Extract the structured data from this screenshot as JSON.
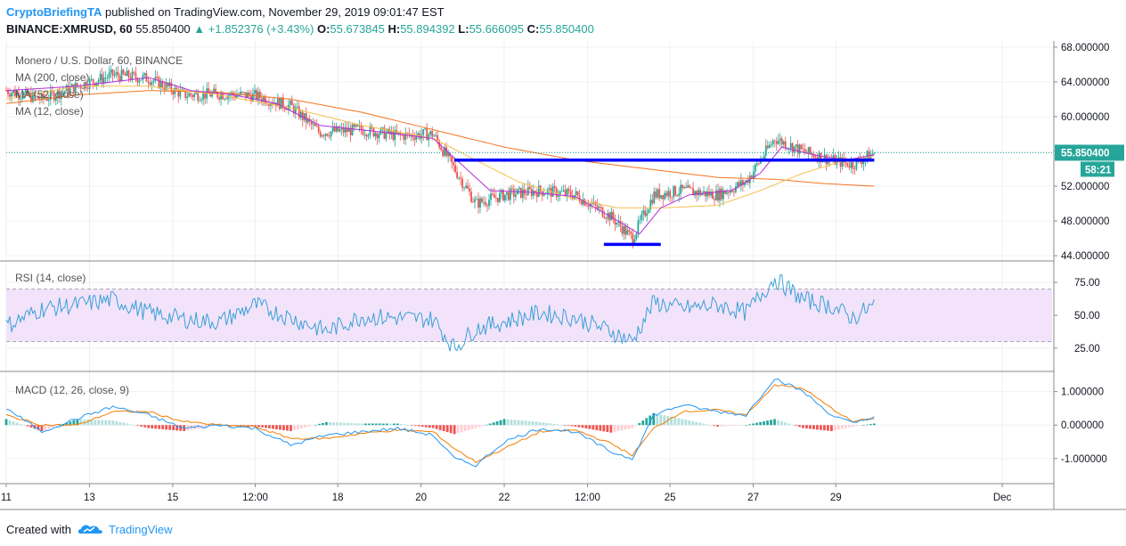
{
  "header": {
    "author": "CryptoBriefingTA",
    "published_text": "published on TradingView.com, November 29, 2019 09:01:47 EST",
    "symbol": "BINANCE:XMRUSD, 60",
    "last": "55.850400",
    "change_arrow": "▲",
    "change": "+1.852376 (+3.43%)",
    "o_label": "O:",
    "o_value": "55.673845",
    "h_label": "H:",
    "h_value": "55.894392",
    "l_label": "L:",
    "l_value": "55.666095",
    "c_label": "C:",
    "c_value": "55.850400"
  },
  "footer": {
    "created_with": "Created with",
    "brand": "TradingView"
  },
  "colors": {
    "up": "#26a69a",
    "down": "#ef5350",
    "ma200": "#f4731f",
    "ma52": "#f6bf50",
    "ma12": "#b32ed6",
    "annotation": "#0000ff",
    "rsi": "#3aa0d6",
    "rsi_band": "#f2e3fb",
    "macd": "#2196f3",
    "signal": "#f57c00",
    "price_tag": "#26a69a"
  },
  "chart_data": [
    {
      "type": "candlestick",
      "title": "Monero / U.S. Dollar, 60, BINANCE",
      "legend": [
        "MA (200, close)",
        "MA (52, close)",
        "MA (12, close)"
      ],
      "x_ticks": [
        "11",
        "13",
        "15",
        "12:00",
        "18",
        "20",
        "22",
        "12:00",
        "25",
        "27",
        "29",
        "Dec"
      ],
      "y_ticks": [
        "68.000000",
        "64.000000",
        "60.000000",
        "56.000000",
        "52.000000",
        "48.000000",
        "44.000000"
      ],
      "ylim": [
        43.5,
        68.5
      ],
      "last_price_label": "55.850400",
      "countdown_label": "58:21",
      "price_path": [
        [
          0,
          63.0
        ],
        [
          5,
          62.0
        ],
        [
          10,
          63.5
        ],
        [
          15,
          64.8
        ],
        [
          20,
          64.4
        ],
        [
          25,
          62.5
        ],
        [
          30,
          62.6
        ],
        [
          35,
          62.4
        ],
        [
          40,
          61.2
        ],
        [
          44,
          58.2
        ],
        [
          50,
          58.5
        ],
        [
          55,
          57.8
        ],
        [
          60,
          58.0
        ],
        [
          63,
          54.0
        ],
        [
          66,
          50.0
        ],
        [
          70,
          51.0
        ],
        [
          75,
          51.5
        ],
        [
          80,
          51.0
        ],
        [
          85,
          48.5
        ],
        [
          88,
          46.0
        ],
        [
          91,
          51.0
        ],
        [
          95,
          51.5
        ],
        [
          100,
          51.0
        ],
        [
          104,
          52.5
        ],
        [
          108,
          57.5
        ],
        [
          112,
          56.0
        ],
        [
          116,
          55.0
        ],
        [
          119,
          54.5
        ],
        [
          122,
          55.85
        ]
      ],
      "ma200_path": [
        [
          0,
          61.5
        ],
        [
          10,
          62.5
        ],
        [
          20,
          63.0
        ],
        [
          30,
          62.8
        ],
        [
          40,
          62.0
        ],
        [
          50,
          60.5
        ],
        [
          60,
          58.5
        ],
        [
          70,
          56.5
        ],
        [
          80,
          55.0
        ],
        [
          90,
          54.0
        ],
        [
          100,
          53.0
        ],
        [
          108,
          52.8
        ],
        [
          115,
          52.3
        ],
        [
          122,
          52.0
        ]
      ],
      "ma52_path": [
        [
          0,
          62.0
        ],
        [
          10,
          63.5
        ],
        [
          20,
          63.5
        ],
        [
          30,
          62.5
        ],
        [
          40,
          61.0
        ],
        [
          50,
          59.0
        ],
        [
          60,
          57.5
        ],
        [
          66,
          55.0
        ],
        [
          72,
          52.5
        ],
        [
          80,
          50.5
        ],
        [
          86,
          49.5
        ],
        [
          92,
          49.5
        ],
        [
          100,
          49.8
        ],
        [
          106,
          51.5
        ],
        [
          112,
          53.5
        ],
        [
          118,
          55.0
        ],
        [
          122,
          55.5
        ]
      ],
      "ma12_path": [
        [
          0,
          63.0
        ],
        [
          10,
          63.5
        ],
        [
          20,
          64.5
        ],
        [
          26,
          63.0
        ],
        [
          32,
          62.5
        ],
        [
          38,
          61.5
        ],
        [
          44,
          59.0
        ],
        [
          52,
          58.3
        ],
        [
          60,
          57.5
        ],
        [
          64,
          54.5
        ],
        [
          68,
          51.5
        ],
        [
          74,
          51.3
        ],
        [
          80,
          50.8
        ],
        [
          86,
          48.0
        ],
        [
          89,
          46.5
        ],
        [
          92,
          49.5
        ],
        [
          96,
          51.0
        ],
        [
          102,
          51.5
        ],
        [
          106,
          53.5
        ],
        [
          109,
          56.5
        ],
        [
          114,
          55.5
        ],
        [
          118,
          55.0
        ],
        [
          122,
          55.6
        ]
      ],
      "annotations": [
        {
          "type": "horizontal_line",
          "y": 55.0,
          "x_from": 63,
          "x_to": 122
        },
        {
          "type": "horizontal_line",
          "y": 45.3,
          "x_from": 84,
          "x_to": 92
        }
      ]
    },
    {
      "type": "line",
      "title": "RSI (14, close)",
      "y_ticks": [
        "75.00",
        "50.00",
        "25.00"
      ],
      "ylim": [
        8,
        90
      ],
      "band": [
        30,
        70
      ],
      "series": [
        {
          "name": "RSI",
          "path": [
            [
              0,
              42
            ],
            [
              5,
              55
            ],
            [
              10,
              58
            ],
            [
              15,
              62
            ],
            [
              20,
              52
            ],
            [
              25,
              47
            ],
            [
              30,
              45
            ],
            [
              35,
              58
            ],
            [
              40,
              48
            ],
            [
              45,
              38
            ],
            [
              50,
              49
            ],
            [
              55,
              48
            ],
            [
              60,
              47
            ],
            [
              63,
              25
            ],
            [
              66,
              40
            ],
            [
              70,
              45
            ],
            [
              75,
              52
            ],
            [
              80,
              48
            ],
            [
              85,
              38
            ],
            [
              88,
              30
            ],
            [
              91,
              60
            ],
            [
              95,
              55
            ],
            [
              100,
              58
            ],
            [
              104,
              52
            ],
            [
              108,
              78
            ],
            [
              112,
              62
            ],
            [
              116,
              57
            ],
            [
              119,
              48
            ],
            [
              122,
              58
            ]
          ]
        }
      ]
    },
    {
      "type": "line",
      "title": "MACD (12, 26, close, 9)",
      "y_ticks": [
        "1.000000",
        "0.000000",
        "-1.000000"
      ],
      "ylim": [
        -1.75,
        1.55
      ],
      "series": [
        {
          "name": "MACD",
          "path": [
            [
              0,
              0.5
            ],
            [
              5,
              -0.2
            ],
            [
              10,
              0.2
            ],
            [
              15,
              0.55
            ],
            [
              20,
              0.3
            ],
            [
              25,
              -0.1
            ],
            [
              30,
              0.0
            ],
            [
              35,
              -0.1
            ],
            [
              40,
              -0.6
            ],
            [
              45,
              -0.3
            ],
            [
              50,
              -0.2
            ],
            [
              55,
              -0.1
            ],
            [
              60,
              -0.3
            ],
            [
              63,
              -1.0
            ],
            [
              66,
              -1.2
            ],
            [
              70,
              -0.5
            ],
            [
              75,
              -0.1
            ],
            [
              80,
              -0.2
            ],
            [
              85,
              -0.8
            ],
            [
              88,
              -1.0
            ],
            [
              91,
              0.3
            ],
            [
              95,
              0.6
            ],
            [
              100,
              0.4
            ],
            [
              104,
              0.3
            ],
            [
              108,
              1.4
            ],
            [
              112,
              1.0
            ],
            [
              116,
              0.3
            ],
            [
              119,
              0.05
            ],
            [
              122,
              0.25
            ]
          ]
        },
        {
          "name": "Signal",
          "path": [
            [
              0,
              0.3
            ],
            [
              5,
              0.0
            ],
            [
              10,
              0.0
            ],
            [
              15,
              0.4
            ],
            [
              20,
              0.4
            ],
            [
              25,
              0.1
            ],
            [
              30,
              0.0
            ],
            [
              35,
              -0.05
            ],
            [
              40,
              -0.4
            ],
            [
              45,
              -0.4
            ],
            [
              50,
              -0.25
            ],
            [
              55,
              -0.15
            ],
            [
              60,
              -0.2
            ],
            [
              63,
              -0.7
            ],
            [
              66,
              -1.1
            ],
            [
              70,
              -0.7
            ],
            [
              75,
              -0.2
            ],
            [
              80,
              -0.15
            ],
            [
              85,
              -0.55
            ],
            [
              88,
              -0.9
            ],
            [
              91,
              -0.1
            ],
            [
              95,
              0.4
            ],
            [
              100,
              0.45
            ],
            [
              104,
              0.3
            ],
            [
              108,
              1.2
            ],
            [
              112,
              1.1
            ],
            [
              116,
              0.5
            ],
            [
              119,
              0.1
            ],
            [
              122,
              0.2
            ]
          ]
        }
      ]
    }
  ]
}
